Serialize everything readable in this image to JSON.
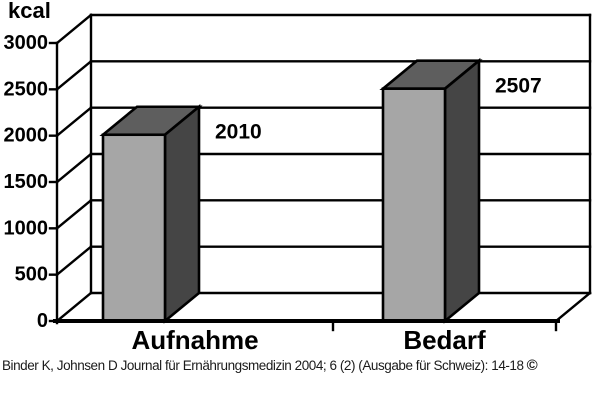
{
  "chart_data": {
    "type": "bar",
    "style": "3d",
    "title": "kcal",
    "categories": [
      "Aufnahme",
      "Bedarf"
    ],
    "values": [
      2010,
      2507
    ],
    "data_labels": [
      "2010",
      "2507"
    ],
    "ylabel": "kcal",
    "xlabel": "",
    "ylim": [
      0,
      3000
    ],
    "yticks": [
      0,
      500,
      1000,
      1500,
      2000,
      2500,
      3000
    ],
    "ytick_labels": [
      "0",
      "500",
      "1000",
      "1500",
      "2000",
      "2500",
      "3000"
    ],
    "grid": true,
    "legend": "none",
    "colors": {
      "bar_front": "#a6a6a6",
      "bar_top": "#5e5e5e",
      "bar_side": "#454545",
      "line": "#000000",
      "wall_fill": "#ffffff",
      "text": "#000000"
    }
  },
  "footer": {
    "citation": "Binder K, Johnsen D Journal für Ernährungsmedizin 2004; 6 (2) (Ausgabe für Schweiz): 14-18",
    "copyright_symbol": "©"
  }
}
